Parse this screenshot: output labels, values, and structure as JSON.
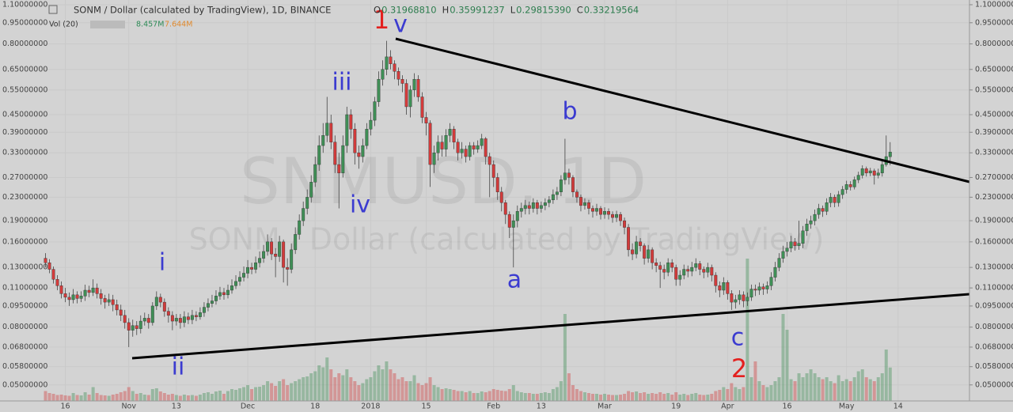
{
  "header": {
    "title": "SONM / Dollar (calculated by TradingView), 1D, BINANCE",
    "ohlc": [
      {
        "label": "O",
        "value": "0.31968810"
      },
      {
        "label": "H",
        "value": "0.35991237"
      },
      {
        "label": "L",
        "value": "0.29815390"
      },
      {
        "label": "C",
        "value": "0.33219564"
      }
    ],
    "volume_title": "Vol (20)",
    "volume_value": "8.457M",
    "volume_ma": "7.644M"
  },
  "chart_data": {
    "type": "candlestick",
    "watermark": [
      "SNMUSD, 1D",
      "SONM / Dollar (calculated by TradingView)"
    ],
    "up_color": "#3f8f56",
    "down_color": "#d23b3b",
    "log_scale": true,
    "grid": true,
    "ylim": [
      0.0439,
      1.143
    ],
    "yticks": [
      {
        "value": 1.1,
        "label": "1.10000000"
      },
      {
        "value": 0.95,
        "label": "0.95000000"
      },
      {
        "value": 0.8,
        "label": "0.80000000"
      },
      {
        "value": 0.65,
        "label": "0.65000000"
      },
      {
        "value": 0.55,
        "label": "0.55000000"
      },
      {
        "value": 0.45,
        "label": "0.45000000"
      },
      {
        "value": 0.39,
        "label": "0.39000000"
      },
      {
        "value": 0.33,
        "label": "0.33000000"
      },
      {
        "value": 0.27,
        "label": "0.27000000"
      },
      {
        "value": 0.23,
        "label": "0.23000000"
      },
      {
        "value": 0.19,
        "label": "0.19000000"
      },
      {
        "value": 0.16,
        "label": "0.16000000"
      },
      {
        "value": 0.13,
        "label": "0.13000000"
      },
      {
        "value": 0.11,
        "label": "0.11000000"
      },
      {
        "value": 0.095,
        "label": "0.09500000"
      },
      {
        "value": 0.08,
        "label": "0.08000000"
      },
      {
        "value": 0.068,
        "label": "0.06800000"
      },
      {
        "value": 0.058,
        "label": "0.05800000"
      },
      {
        "value": 0.05,
        "label": "0.05000000"
      }
    ],
    "xlim": [
      -0.5,
      233
    ],
    "xticks": [
      {
        "value": 5,
        "label": "16"
      },
      {
        "value": 21,
        "label": "Nov"
      },
      {
        "value": 33,
        "label": "13"
      },
      {
        "value": 51,
        "label": "Dec"
      },
      {
        "value": 68,
        "label": "18"
      },
      {
        "value": 82,
        "label": "2018"
      },
      {
        "value": 96,
        "label": "15"
      },
      {
        "value": 113,
        "label": "Feb"
      },
      {
        "value": 125,
        "label": "13"
      },
      {
        "value": 141,
        "label": "Mar"
      },
      {
        "value": 159,
        "label": "19"
      },
      {
        "value": 172,
        "label": "Apr"
      },
      {
        "value": 187,
        "label": "16"
      },
      {
        "value": 202,
        "label": "May"
      },
      {
        "value": 215,
        "label": "14"
      }
    ],
    "open": [
      0.14,
      0.135,
      0.128,
      0.118,
      0.112,
      0.105,
      0.102,
      0.1,
      0.104,
      0.101,
      0.103,
      0.108,
      0.106,
      0.11,
      0.105,
      0.101,
      0.098,
      0.1,
      0.096,
      0.092,
      0.088,
      0.083,
      0.078,
      0.081,
      0.079,
      0.084,
      0.086,
      0.083,
      0.095,
      0.102,
      0.098,
      0.091,
      0.088,
      0.084,
      0.086,
      0.083,
      0.087,
      0.085,
      0.088,
      0.087,
      0.09,
      0.094,
      0.097,
      0.099,
      0.103,
      0.106,
      0.104,
      0.108,
      0.112,
      0.116,
      0.12,
      0.124,
      0.13,
      0.128,
      0.135,
      0.14,
      0.148,
      0.16,
      0.145,
      0.142,
      0.16,
      0.13,
      0.128,
      0.15,
      0.17,
      0.19,
      0.21,
      0.23,
      0.26,
      0.3,
      0.35,
      0.38,
      0.42,
      0.36,
      0.3,
      0.28,
      0.35,
      0.45,
      0.4,
      0.33,
      0.32,
      0.35,
      0.4,
      0.43,
      0.5,
      0.6,
      0.65,
      0.72,
      0.68,
      0.64,
      0.6,
      0.58,
      0.48,
      0.55,
      0.6,
      0.52,
      0.44,
      0.42,
      0.3,
      0.33,
      0.36,
      0.34,
      0.38,
      0.4,
      0.36,
      0.33,
      0.34,
      0.32,
      0.35,
      0.34,
      0.35,
      0.37,
      0.32,
      0.3,
      0.27,
      0.24,
      0.22,
      0.2,
      0.18,
      0.19,
      0.205,
      0.21,
      0.215,
      0.21,
      0.22,
      0.21,
      0.215,
      0.22,
      0.225,
      0.235,
      0.24,
      0.265,
      0.28,
      0.27,
      0.24,
      0.23,
      0.215,
      0.22,
      0.21,
      0.205,
      0.21,
      0.2,
      0.205,
      0.2,
      0.195,
      0.2,
      0.19,
      0.18,
      0.15,
      0.145,
      0.16,
      0.155,
      0.14,
      0.15,
      0.135,
      0.132,
      0.128,
      0.125,
      0.135,
      0.13,
      0.118,
      0.122,
      0.128,
      0.126,
      0.13,
      0.134,
      0.128,
      0.125,
      0.13,
      0.122,
      0.112,
      0.108,
      0.115,
      0.105,
      0.098,
      0.1,
      0.104,
      0.099,
      0.102,
      0.109,
      0.108,
      0.111,
      0.109,
      0.112,
      0.12,
      0.13,
      0.14,
      0.148,
      0.152,
      0.16,
      0.155,
      0.158,
      0.175,
      0.185,
      0.19,
      0.2,
      0.21,
      0.205,
      0.22,
      0.23,
      0.22,
      0.235,
      0.245,
      0.255,
      0.25,
      0.265,
      0.275,
      0.29,
      0.28,
      0.285,
      0.275,
      0.28,
      0.3,
      0.3197
    ],
    "high": [
      0.146,
      0.139,
      0.131,
      0.122,
      0.116,
      0.11,
      0.106,
      0.109,
      0.107,
      0.107,
      0.113,
      0.112,
      0.118,
      0.114,
      0.109,
      0.104,
      0.105,
      0.104,
      0.1,
      0.096,
      0.092,
      0.086,
      0.085,
      0.084,
      0.088,
      0.09,
      0.089,
      0.098,
      0.107,
      0.105,
      0.101,
      0.094,
      0.091,
      0.089,
      0.089,
      0.091,
      0.09,
      0.092,
      0.091,
      0.094,
      0.098,
      0.101,
      0.104,
      0.108,
      0.111,
      0.11,
      0.113,
      0.118,
      0.122,
      0.126,
      0.131,
      0.138,
      0.135,
      0.142,
      0.148,
      0.156,
      0.17,
      0.165,
      0.152,
      0.168,
      0.163,
      0.14,
      0.158,
      0.18,
      0.2,
      0.222,
      0.245,
      0.275,
      0.32,
      0.38,
      0.42,
      0.52,
      0.45,
      0.38,
      0.33,
      0.38,
      0.48,
      0.47,
      0.42,
      0.35,
      0.37,
      0.42,
      0.46,
      0.52,
      0.64,
      0.7,
      0.82,
      0.76,
      0.7,
      0.66,
      0.62,
      0.6,
      0.57,
      0.63,
      0.62,
      0.54,
      0.46,
      0.43,
      0.35,
      0.38,
      0.38,
      0.4,
      0.42,
      0.41,
      0.37,
      0.36,
      0.35,
      0.36,
      0.36,
      0.365,
      0.385,
      0.375,
      0.33,
      0.31,
      0.28,
      0.25,
      0.225,
      0.205,
      0.2,
      0.215,
      0.22,
      0.225,
      0.222,
      0.228,
      0.225,
      0.222,
      0.228,
      0.232,
      0.245,
      0.25,
      0.275,
      0.37,
      0.29,
      0.275,
      0.245,
      0.235,
      0.228,
      0.225,
      0.215,
      0.218,
      0.214,
      0.212,
      0.21,
      0.205,
      0.206,
      0.204,
      0.195,
      0.185,
      0.158,
      0.168,
      0.165,
      0.158,
      0.156,
      0.153,
      0.14,
      0.136,
      0.133,
      0.14,
      0.139,
      0.133,
      0.127,
      0.133,
      0.132,
      0.136,
      0.14,
      0.137,
      0.131,
      0.135,
      0.133,
      0.125,
      0.116,
      0.12,
      0.117,
      0.108,
      0.104,
      0.108,
      0.107,
      0.106,
      0.113,
      0.113,
      0.115,
      0.114,
      0.116,
      0.125,
      0.136,
      0.146,
      0.155,
      0.16,
      0.168,
      0.165,
      0.19,
      0.182,
      0.193,
      0.198,
      0.208,
      0.218,
      0.215,
      0.228,
      0.238,
      0.235,
      0.242,
      0.252,
      0.263,
      0.262,
      0.272,
      0.283,
      0.298,
      0.295,
      0.292,
      0.29,
      0.29,
      0.31,
      0.38,
      0.3599
    ],
    "low": [
      0.13,
      0.124,
      0.114,
      0.108,
      0.101,
      0.098,
      0.095,
      0.097,
      0.097,
      0.098,
      0.099,
      0.102,
      0.103,
      0.101,
      0.096,
      0.093,
      0.095,
      0.091,
      0.088,
      0.084,
      0.079,
      0.068,
      0.074,
      0.075,
      0.076,
      0.081,
      0.079,
      0.081,
      0.092,
      0.094,
      0.087,
      0.083,
      0.078,
      0.081,
      0.079,
      0.08,
      0.082,
      0.082,
      0.084,
      0.085,
      0.087,
      0.091,
      0.094,
      0.096,
      0.1,
      0.1,
      0.101,
      0.105,
      0.109,
      0.112,
      0.116,
      0.119,
      0.123,
      0.124,
      0.13,
      0.135,
      0.143,
      0.138,
      0.12,
      0.136,
      0.115,
      0.112,
      0.124,
      0.145,
      0.163,
      0.182,
      0.2,
      0.22,
      0.25,
      0.285,
      0.33,
      0.36,
      0.34,
      0.28,
      0.21,
      0.27,
      0.33,
      0.37,
      0.3,
      0.29,
      0.305,
      0.34,
      0.38,
      0.41,
      0.48,
      0.57,
      0.62,
      0.65,
      0.6,
      0.57,
      0.54,
      0.45,
      0.44,
      0.52,
      0.5,
      0.42,
      0.38,
      0.25,
      0.28,
      0.31,
      0.32,
      0.32,
      0.36,
      0.34,
      0.31,
      0.315,
      0.305,
      0.31,
      0.325,
      0.33,
      0.34,
      0.3,
      0.23,
      0.25,
      0.225,
      0.205,
      0.185,
      0.165,
      0.13,
      0.18,
      0.195,
      0.2,
      0.2,
      0.203,
      0.2,
      0.203,
      0.207,
      0.212,
      0.218,
      0.225,
      0.232,
      0.255,
      0.255,
      0.23,
      0.22,
      0.205,
      0.208,
      0.2,
      0.195,
      0.198,
      0.192,
      0.193,
      0.192,
      0.187,
      0.188,
      0.182,
      0.17,
      0.142,
      0.138,
      0.14,
      0.148,
      0.133,
      0.135,
      0.128,
      0.125,
      0.11,
      0.118,
      0.121,
      0.125,
      0.112,
      0.112,
      0.118,
      0.12,
      0.121,
      0.126,
      0.122,
      0.119,
      0.12,
      0.116,
      0.106,
      0.102,
      0.104,
      0.1,
      0.092,
      0.093,
      0.096,
      0.094,
      0.095,
      0.099,
      0.103,
      0.104,
      0.104,
      0.105,
      0.108,
      0.116,
      0.126,
      0.135,
      0.142,
      0.147,
      0.149,
      0.15,
      0.152,
      0.168,
      0.178,
      0.183,
      0.193,
      0.196,
      0.199,
      0.212,
      0.212,
      0.213,
      0.227,
      0.237,
      0.243,
      0.245,
      0.258,
      0.268,
      0.272,
      0.273,
      0.255,
      0.268,
      0.272,
      0.295,
      0.2982
    ],
    "close": [
      0.135,
      0.128,
      0.118,
      0.112,
      0.105,
      0.102,
      0.1,
      0.104,
      0.101,
      0.103,
      0.108,
      0.106,
      0.11,
      0.105,
      0.101,
      0.098,
      0.1,
      0.096,
      0.092,
      0.088,
      0.083,
      0.078,
      0.081,
      0.079,
      0.084,
      0.086,
      0.083,
      0.095,
      0.102,
      0.098,
      0.091,
      0.088,
      0.084,
      0.086,
      0.083,
      0.087,
      0.085,
      0.088,
      0.087,
      0.09,
      0.094,
      0.097,
      0.099,
      0.103,
      0.106,
      0.104,
      0.108,
      0.112,
      0.116,
      0.12,
      0.124,
      0.13,
      0.128,
      0.135,
      0.14,
      0.148,
      0.16,
      0.145,
      0.142,
      0.16,
      0.13,
      0.128,
      0.15,
      0.17,
      0.19,
      0.21,
      0.23,
      0.26,
      0.3,
      0.35,
      0.38,
      0.42,
      0.36,
      0.3,
      0.28,
      0.35,
      0.45,
      0.4,
      0.33,
      0.32,
      0.35,
      0.4,
      0.43,
      0.5,
      0.6,
      0.65,
      0.72,
      0.68,
      0.64,
      0.6,
      0.58,
      0.48,
      0.55,
      0.6,
      0.52,
      0.44,
      0.42,
      0.3,
      0.33,
      0.36,
      0.34,
      0.38,
      0.4,
      0.36,
      0.33,
      0.34,
      0.32,
      0.35,
      0.34,
      0.35,
      0.37,
      0.32,
      0.3,
      0.27,
      0.24,
      0.22,
      0.2,
      0.18,
      0.19,
      0.205,
      0.21,
      0.215,
      0.21,
      0.22,
      0.21,
      0.215,
      0.22,
      0.225,
      0.235,
      0.24,
      0.265,
      0.28,
      0.27,
      0.24,
      0.23,
      0.215,
      0.22,
      0.21,
      0.205,
      0.21,
      0.2,
      0.205,
      0.2,
      0.195,
      0.2,
      0.19,
      0.18,
      0.15,
      0.145,
      0.16,
      0.155,
      0.14,
      0.15,
      0.135,
      0.132,
      0.128,
      0.125,
      0.135,
      0.13,
      0.118,
      0.122,
      0.128,
      0.126,
      0.13,
      0.134,
      0.128,
      0.125,
      0.13,
      0.122,
      0.112,
      0.108,
      0.115,
      0.105,
      0.098,
      0.1,
      0.104,
      0.099,
      0.102,
      0.109,
      0.108,
      0.111,
      0.109,
      0.112,
      0.12,
      0.13,
      0.14,
      0.148,
      0.152,
      0.16,
      0.155,
      0.158,
      0.175,
      0.185,
      0.19,
      0.2,
      0.21,
      0.205,
      0.22,
      0.23,
      0.22,
      0.235,
      0.245,
      0.255,
      0.25,
      0.265,
      0.275,
      0.29,
      0.28,
      0.285,
      0.275,
      0.28,
      0.3,
      0.32,
      0.3322
    ],
    "volume": [
      2.5,
      2,
      1.8,
      1.5,
      1.6,
      1.4,
      1.3,
      2,
      1.5,
      1.4,
      2.2,
      1.6,
      3.5,
      2,
      1.5,
      1.4,
      1.3,
      1.6,
      1.8,
      2.2,
      2.5,
      3.5,
      2.5,
      1.8,
      2,
      1.6,
      1.5,
      3,
      3.2,
      2.4,
      2,
      1.6,
      1.8,
      1.5,
      1.3,
      1.6,
      1.4,
      1.5,
      1.3,
      1.6,
      2,
      2.2,
      1.8,
      2.4,
      2.6,
      1.8,
      2.5,
      3,
      2.8,
      3.2,
      3.5,
      4,
      3,
      3.5,
      3.6,
      4,
      5,
      4.5,
      3.8,
      5,
      5.5,
      4,
      4.5,
      5,
      5.5,
      6,
      6.2,
      7,
      7.5,
      9,
      8.5,
      11,
      8,
      6,
      7,
      6.5,
      8,
      6,
      5,
      4,
      4.5,
      5.5,
      6,
      7.5,
      9,
      8,
      10,
      8,
      7,
      5.5,
      6,
      5,
      5,
      6.5,
      4.5,
      4,
      4.5,
      6,
      4,
      3.5,
      3,
      3.2,
      3,
      2.8,
      2.5,
      2.5,
      2.2,
      2.5,
      2,
      2,
      2.4,
      2.2,
      2.5,
      3,
      2.8,
      2.6,
      2.5,
      3,
      4,
      2.5,
      2.2,
      2,
      2,
      1.8,
      1.8,
      2,
      2.2,
      2,
      3,
      3.5,
      5,
      22,
      7,
      4,
      3,
      2.5,
      2.2,
      2,
      1.8,
      1.8,
      1.6,
      1.8,
      1.6,
      1.5,
      1.5,
      1.6,
      1.8,
      2.5,
      2.2,
      2.4,
      2,
      2.2,
      1.8,
      2,
      1.8,
      2.2,
      1.8,
      2,
      1.6,
      2.2,
      1.6,
      1.8,
      1.5,
      1.8,
      2,
      1.6,
      1.5,
      1.6,
      1.8,
      2.5,
      2.8,
      3.5,
      3,
      4.5,
      3.5,
      3,
      3.5,
      36,
      6,
      10,
      5,
      4,
      3.5,
      4,
      5,
      6,
      22,
      18,
      5.5,
      5,
      7,
      6,
      7,
      8,
      7,
      6,
      5.5,
      6,
      5,
      4.5,
      6.5,
      5,
      5.5,
      5,
      6,
      7.5,
      8,
      6,
      5.5,
      5,
      6,
      7,
      13,
      8.457
    ],
    "annotations": [
      {
        "text": "1",
        "color": "#e3211f"
      },
      {
        "text": "v",
        "color": "#3b3bd0"
      },
      {
        "text": "iii",
        "color": "#3b3bd0"
      },
      {
        "text": "iv",
        "color": "#3b3bd0"
      },
      {
        "text": "i",
        "color": "#3b3bd0"
      },
      {
        "text": "ii",
        "color": "#3b3bd0"
      },
      {
        "text": "a",
        "color": "#3b3bd0"
      },
      {
        "text": "b",
        "color": "#3b3bd0"
      },
      {
        "text": "c",
        "color": "#3b3bd0"
      },
      {
        "text": "2",
        "color": "#e3211f"
      }
    ]
  }
}
